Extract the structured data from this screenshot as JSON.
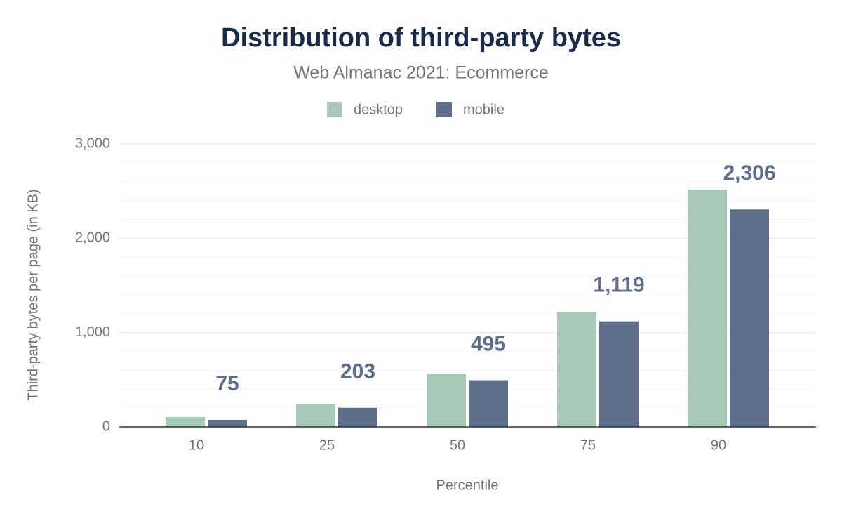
{
  "chart_data": {
    "type": "bar",
    "title": "Distribution of third-party bytes",
    "subtitle": "Web Almanac 2021: Ecommerce",
    "x_label": "Percentile",
    "y_label": "Third-party bytes per page (in KB)",
    "categories": [
      "10",
      "25",
      "50",
      "75",
      "90"
    ],
    "series": [
      {
        "name": "desktop",
        "color": "#a8c9b8",
        "values": [
          105,
          238,
          566,
          1221,
          2517
        ]
      },
      {
        "name": "mobile",
        "color": "#5f6e8a",
        "values": [
          75,
          203,
          495,
          1119,
          2306
        ],
        "value_labels": [
          "75",
          "203",
          "495",
          "1,119",
          "2,306"
        ]
      }
    ],
    "ylim": [
      0,
      3000
    ],
    "yticks": [
      0,
      {
        "value": 1000,
        "label": "1,000"
      },
      {
        "value": 2000,
        "label": "2,000"
      },
      {
        "value": 3000,
        "label": "3,000"
      }
    ],
    "y_minor_ticks": [
      200,
      400,
      600,
      800,
      1200,
      1400,
      1600,
      1800,
      2200,
      2400,
      2600,
      2800
    ],
    "grid": true,
    "legend": "top"
  }
}
